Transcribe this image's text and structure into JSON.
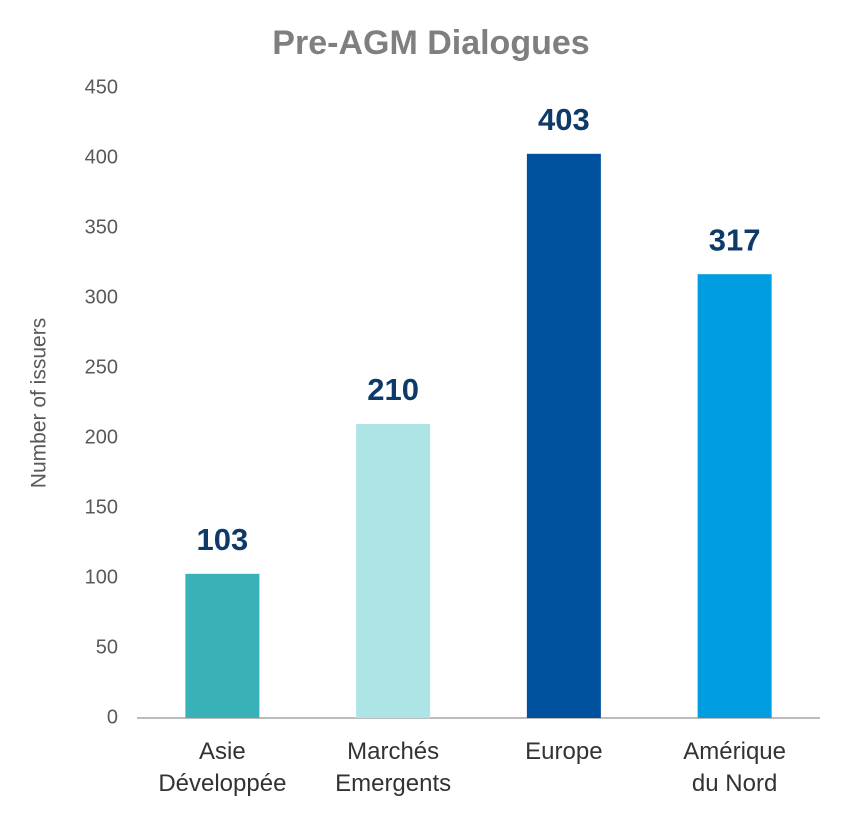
{
  "chart_data": {
    "type": "bar",
    "title": "Pre-AGM Dialogues",
    "y_label": "Number of issuers",
    "categories": [
      "Asie\nDéveloppée",
      "Marchés\nEmergents",
      "Europe",
      "Amérique\ndu Nord"
    ],
    "values": [
      103,
      210,
      403,
      317
    ],
    "colors": [
      "#38b2b8",
      "#ade4e6",
      "#00519e",
      "#009de0"
    ],
    "ylim": [
      0,
      450
    ],
    "yticks": [
      0,
      50,
      100,
      150,
      200,
      250,
      300,
      350,
      400,
      450
    ],
    "grid": false
  }
}
